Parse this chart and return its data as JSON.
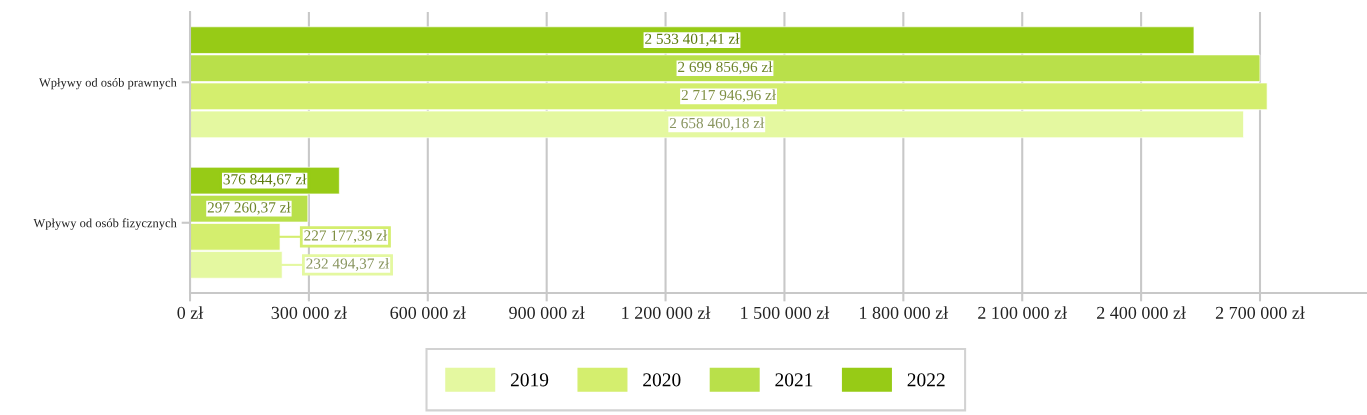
{
  "chart_data": {
    "type": "bar",
    "orientation": "horizontal",
    "categories": [
      "Wpływy od osób prawnych",
      "Wpływy od osób fizycznych"
    ],
    "series": [
      {
        "name": "2019",
        "color": "#e4f8a0",
        "values": [
          2658460.18,
          232494.37
        ],
        "value_labels": [
          "2 658 460,18 zł",
          "232 494,37 zł"
        ]
      },
      {
        "name": "2020",
        "color": "#d4ee6e",
        "values": [
          2717946.96,
          227177.39
        ],
        "value_labels": [
          "2 717 946,96 zł",
          "227 177,39 zł"
        ]
      },
      {
        "name": "2021",
        "color": "#b9e04a",
        "values": [
          2699856.96,
          297260.37
        ],
        "value_labels": [
          "2 699 856,96 zł",
          "297 260,37 zł"
        ]
      },
      {
        "name": "2022",
        "color": "#97cb16",
        "values": [
          2533401.41,
          376844.67
        ],
        "value_labels": [
          "2 533 401,41 zł",
          "376 844,67 zł"
        ]
      }
    ],
    "xlim": [
      0,
      2970000
    ],
    "xticks": [
      {
        "value": 0,
        "label": "0 zł"
      },
      {
        "value": 300000,
        "label": "300 000 zł"
      },
      {
        "value": 600000,
        "label": "600 000 zł"
      },
      {
        "value": 900000,
        "label": "900 000 zł"
      },
      {
        "value": 1200000,
        "label": "1 200 000 zł"
      },
      {
        "value": 1500000,
        "label": "1 500 000 zł"
      },
      {
        "value": 1800000,
        "label": "1 800 000 zł"
      },
      {
        "value": 2100000,
        "label": "2 100 000 zł"
      },
      {
        "value": 2400000,
        "label": "2 400 000 zł"
      },
      {
        "value": 2700000,
        "label": "2 700 000 zł"
      }
    ],
    "grid": "x",
    "legend": "bottom"
  }
}
